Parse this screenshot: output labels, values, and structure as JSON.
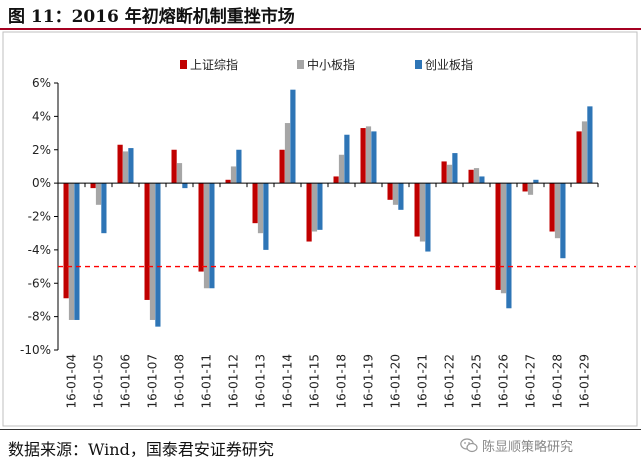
{
  "figure": {
    "title": "图 11：2016 年初熔断机制重挫市场",
    "source": "数据来源：Wind，国泰君安证券研究",
    "watermark": "陈显顺策略研究",
    "watermark_icon": "wechat-icon"
  },
  "chart_data": {
    "type": "bar",
    "categories": [
      "16-01-04",
      "16-01-05",
      "16-01-06",
      "16-01-07",
      "16-01-08",
      "16-01-11",
      "16-01-12",
      "16-01-13",
      "16-01-14",
      "16-01-15",
      "16-01-18",
      "16-01-19",
      "16-01-20",
      "16-01-21",
      "16-01-22",
      "16-01-25",
      "16-01-26",
      "16-01-27",
      "16-01-28",
      "16-01-29"
    ],
    "series": [
      {
        "name": "上证综指",
        "color": "#c00000",
        "values": [
          -6.9,
          -0.3,
          2.3,
          -7.0,
          2.0,
          -5.3,
          0.2,
          -2.4,
          2.0,
          -3.5,
          0.4,
          3.3,
          -1.0,
          -3.2,
          1.3,
          0.8,
          -6.4,
          -0.5,
          -2.9,
          3.1
        ]
      },
      {
        "name": "中小板指",
        "color": "#a6a6a6",
        "values": [
          -8.2,
          -1.3,
          1.9,
          -8.2,
          1.2,
          -6.3,
          1.0,
          -3.0,
          3.6,
          -2.9,
          1.7,
          3.4,
          -1.3,
          -3.5,
          1.1,
          0.9,
          -6.6,
          -0.7,
          -3.3,
          3.7
        ]
      },
      {
        "name": "创业板指",
        "color": "#2e75b6",
        "values": [
          -8.2,
          -3.0,
          2.1,
          -8.6,
          -0.3,
          -6.3,
          2.0,
          -4.0,
          5.6,
          -2.8,
          2.9,
          3.1,
          -1.6,
          -4.1,
          1.8,
          0.4,
          -7.5,
          0.2,
          -4.5,
          4.6
        ]
      }
    ],
    "ylim": [
      -10,
      6
    ],
    "yticks": [
      "6%",
      "4%",
      "2%",
      "0%",
      "-2%",
      "-4%",
      "-6%",
      "-8%",
      "-10%"
    ],
    "ytick_values": [
      6,
      4,
      2,
      0,
      -2,
      -4,
      -6,
      -8,
      -10
    ],
    "reference_line": {
      "value": -5,
      "color": "#ff0000",
      "style": "dashed"
    },
    "legend_position": "top",
    "grid": false
  }
}
